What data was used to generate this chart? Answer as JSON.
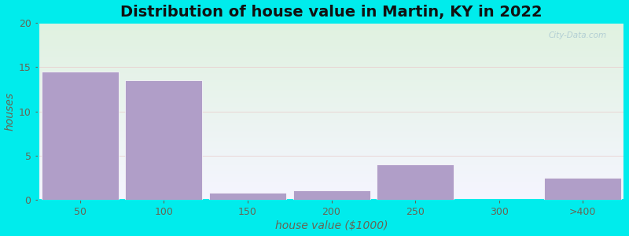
{
  "title": "Distribution of house value in Martin, KY in 2022",
  "xlabel": "house value ($1000)",
  "ylabel": "houses",
  "categories": [
    "50",
    "100",
    "150",
    "200",
    "250",
    "300",
    ">400"
  ],
  "values": [
    14.5,
    13.5,
    0.8,
    1.1,
    4.0,
    0.0,
    2.5
  ],
  "bar_color": "#b09ec8",
  "bar_edgecolor": "#ffffff",
  "ylim": [
    0,
    20
  ],
  "yticks": [
    0,
    5,
    10,
    15,
    20
  ],
  "background_outer": "#00ecec",
  "background_plot_topleft": "#e2f2e2",
  "background_plot_bottomright": "#f5f5ff",
  "grid_color": "#e8c8c8",
  "title_fontsize": 14,
  "axis_label_fontsize": 10,
  "tick_fontsize": 9,
  "label_color": "#666655"
}
